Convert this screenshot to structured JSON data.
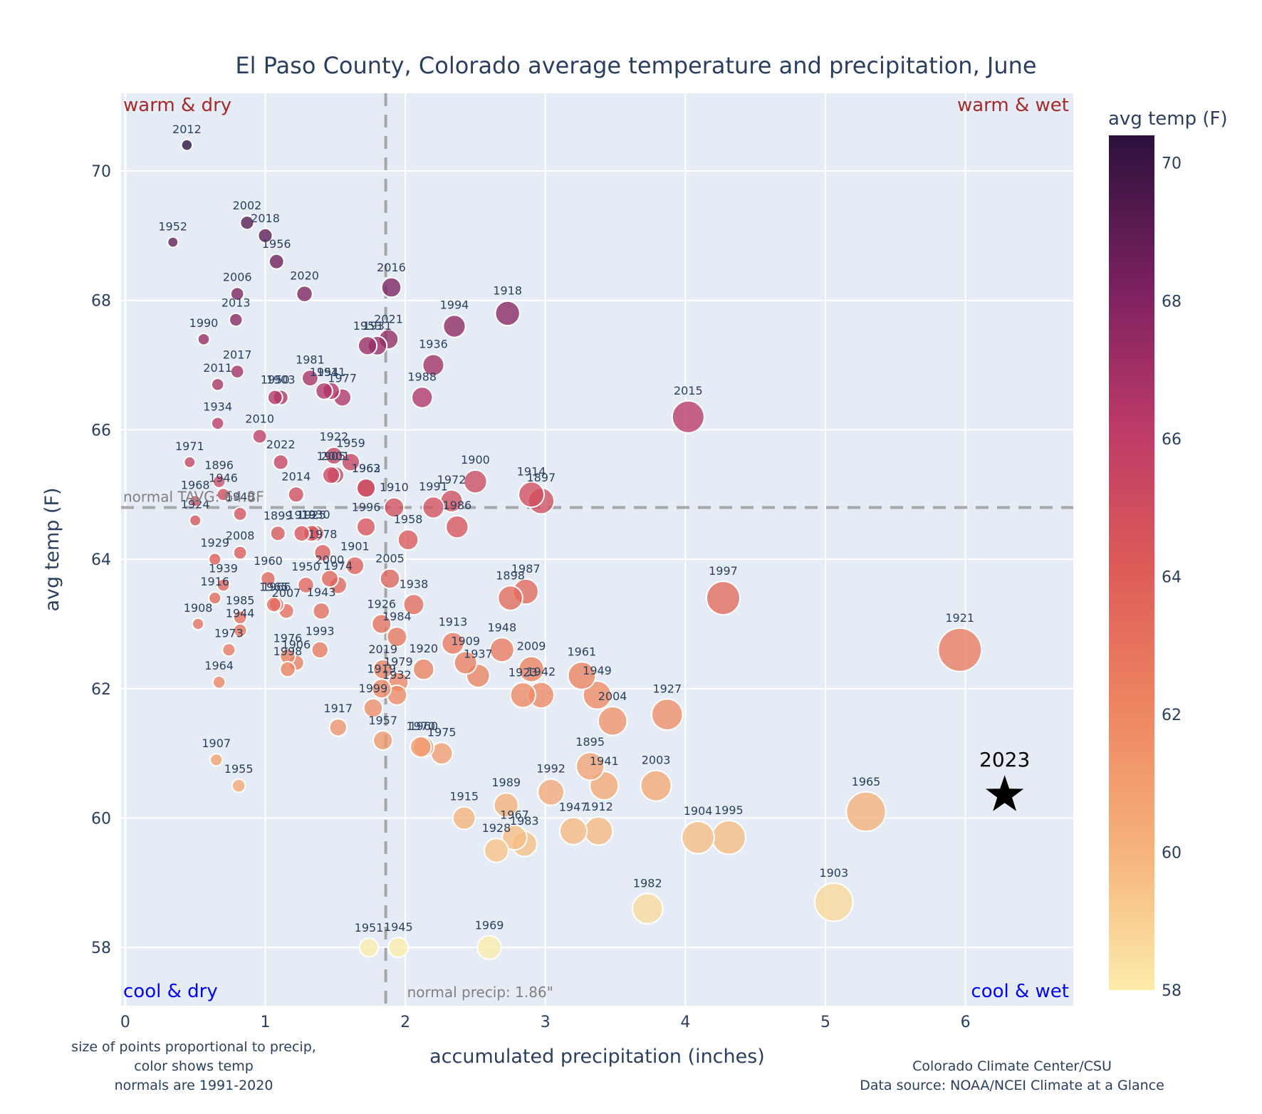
{
  "chart_data": {
    "type": "scatter",
    "title": "El Paso County, Colorado average temperature and precipitation, June",
    "xlabel": "accumulated precipitation (inches)",
    "ylabel": "avg temp (F)",
    "xlim": [
      -0.03,
      6.77
    ],
    "ylim": [
      57.1,
      71.2
    ],
    "xticks": [
      0,
      1,
      2,
      3,
      4,
      5,
      6
    ],
    "yticks": [
      58,
      60,
      62,
      64,
      66,
      68,
      70
    ],
    "grid": true,
    "colorbar": {
      "title": "avg temp (F)",
      "range": [
        58,
        70.4
      ],
      "ticks": [
        58,
        60,
        62,
        64,
        66,
        68,
        70
      ],
      "colorscale": "magma-like (light yellow to dark purple)"
    },
    "normals": {
      "precip": 1.86,
      "temp": 64.8,
      "precip_label": "normal precip: 1.86\"",
      "temp_label": "normal TAVG: 64.8F"
    },
    "quadrant_labels": {
      "top_left": "warm & dry",
      "top_right": "warm & wet",
      "bottom_left": "cool & dry",
      "bottom_right": "cool & wet"
    },
    "highlight": {
      "label": "2023",
      "x": 6.28,
      "y": 60.4,
      "marker": "star"
    },
    "notes": {
      "left": [
        "size of points proportional to precip,",
        "color shows temp",
        "normals are 1991-2020"
      ],
      "right": [
        "Colorado Climate Center/CSU",
        "Data source: NOAA/NCEI Climate at a Glance"
      ]
    },
    "points": [
      {
        "year": "2012",
        "x": 0.44,
        "y": 70.4
      },
      {
        "year": "1952",
        "x": 0.34,
        "y": 68.9
      },
      {
        "year": "2002",
        "x": 0.87,
        "y": 69.2
      },
      {
        "year": "2018",
        "x": 1.0,
        "y": 69.0
      },
      {
        "year": "1956",
        "x": 1.08,
        "y": 68.6
      },
      {
        "year": "2020",
        "x": 1.28,
        "y": 68.1
      },
      {
        "year": "2006",
        "x": 0.8,
        "y": 68.1
      },
      {
        "year": "2013",
        "x": 0.79,
        "y": 67.7
      },
      {
        "year": "1990",
        "x": 0.56,
        "y": 67.4
      },
      {
        "year": "2016",
        "x": 1.9,
        "y": 68.2
      },
      {
        "year": "1953",
        "x": 1.73,
        "y": 67.3
      },
      {
        "year": "1931",
        "x": 1.8,
        "y": 67.3
      },
      {
        "year": "2021",
        "x": 1.88,
        "y": 67.4
      },
      {
        "year": "1994",
        "x": 2.35,
        "y": 67.6
      },
      {
        "year": "1918",
        "x": 2.73,
        "y": 67.8
      },
      {
        "year": "1936",
        "x": 2.2,
        "y": 67.0
      },
      {
        "year": "1988",
        "x": 2.12,
        "y": 66.5
      },
      {
        "year": "2017",
        "x": 0.8,
        "y": 66.9
      },
      {
        "year": "2011",
        "x": 0.66,
        "y": 66.7
      },
      {
        "year": "1981",
        "x": 1.32,
        "y": 66.8
      },
      {
        "year": "1950",
        "x": 1.07,
        "y": 66.5
      },
      {
        "year": "1903",
        "x": 1.11,
        "y": 66.5
      },
      {
        "year": "1954",
        "x": 1.42,
        "y": 66.6
      },
      {
        "year": "1911",
        "x": 1.47,
        "y": 66.6
      },
      {
        "year": "1977",
        "x": 1.55,
        "y": 66.5
      },
      {
        "year": "1934",
        "x": 0.66,
        "y": 66.1
      },
      {
        "year": "2010",
        "x": 0.96,
        "y": 65.9
      },
      {
        "year": "2015",
        "x": 4.02,
        "y": 66.2
      },
      {
        "year": "1971",
        "x": 0.46,
        "y": 65.5
      },
      {
        "year": "2022",
        "x": 1.11,
        "y": 65.5
      },
      {
        "year": "1922",
        "x": 1.49,
        "y": 65.6
      },
      {
        "year": "1959",
        "x": 1.61,
        "y": 65.5
      },
      {
        "year": "1905",
        "x": 1.47,
        "y": 65.3
      },
      {
        "year": "2001",
        "x": 1.5,
        "y": 65.3
      },
      {
        "year": "1962",
        "x": 1.72,
        "y": 65.1
      },
      {
        "year": "1963",
        "x": 1.72,
        "y": 65.1
      },
      {
        "year": "1900",
        "x": 2.5,
        "y": 65.2
      },
      {
        "year": "1914",
        "x": 2.9,
        "y": 65.0
      },
      {
        "year": "1897",
        "x": 2.97,
        "y": 64.9
      },
      {
        "year": "1896",
        "x": 0.67,
        "y": 65.2
      },
      {
        "year": "1946",
        "x": 0.7,
        "y": 65.0
      },
      {
        "year": "1968",
        "x": 0.5,
        "y": 64.9
      },
      {
        "year": "1940",
        "x": 0.82,
        "y": 64.7
      },
      {
        "year": "1924",
        "x": 0.5,
        "y": 64.6
      },
      {
        "year": "2014",
        "x": 1.22,
        "y": 65.0
      },
      {
        "year": "1910",
        "x": 1.92,
        "y": 64.8
      },
      {
        "year": "1991",
        "x": 2.2,
        "y": 64.8
      },
      {
        "year": "1972",
        "x": 2.33,
        "y": 64.9
      },
      {
        "year": "1986",
        "x": 2.37,
        "y": 64.5
      },
      {
        "year": "1996",
        "x": 1.72,
        "y": 64.5
      },
      {
        "year": "1958",
        "x": 2.02,
        "y": 64.3
      },
      {
        "year": "1899",
        "x": 1.09,
        "y": 64.4
      },
      {
        "year": "1919",
        "x": 1.26,
        "y": 64.4
      },
      {
        "year": "1925",
        "x": 1.33,
        "y": 64.4
      },
      {
        "year": "1930",
        "x": 1.36,
        "y": 64.4
      },
      {
        "year": "1978",
        "x": 1.41,
        "y": 64.1
      },
      {
        "year": "2008",
        "x": 0.82,
        "y": 64.1
      },
      {
        "year": "1929",
        "x": 0.64,
        "y": 64.0
      },
      {
        "year": "1901",
        "x": 1.64,
        "y": 63.9
      },
      {
        "year": "2000",
        "x": 1.46,
        "y": 63.7
      },
      {
        "year": "1974",
        "x": 1.52,
        "y": 63.6
      },
      {
        "year": "1950b",
        "x": 1.29,
        "y": 63.6
      },
      {
        "year": "1960",
        "x": 1.02,
        "y": 63.7
      },
      {
        "year": "2005",
        "x": 1.89,
        "y": 63.7
      },
      {
        "year": "1939",
        "x": 0.7,
        "y": 63.6
      },
      {
        "year": "1916",
        "x": 0.64,
        "y": 63.4
      },
      {
        "year": "1965b",
        "x": 1.06,
        "y": 63.3
      },
      {
        "year": "1966",
        "x": 1.08,
        "y": 63.3
      },
      {
        "year": "2007",
        "x": 1.15,
        "y": 63.2
      },
      {
        "year": "1943",
        "x": 1.4,
        "y": 63.2
      },
      {
        "year": "1938",
        "x": 2.06,
        "y": 63.3
      },
      {
        "year": "1898",
        "x": 2.75,
        "y": 63.4
      },
      {
        "year": "1987",
        "x": 2.86,
        "y": 63.5
      },
      {
        "year": "1997",
        "x": 4.27,
        "y": 63.4
      },
      {
        "year": "1985",
        "x": 0.82,
        "y": 63.1
      },
      {
        "year": "1908",
        "x": 0.52,
        "y": 63.0
      },
      {
        "year": "1944",
        "x": 0.82,
        "y": 62.9
      },
      {
        "year": "1926",
        "x": 1.83,
        "y": 63.0
      },
      {
        "year": "1984",
        "x": 1.94,
        "y": 62.8
      },
      {
        "year": "1913",
        "x": 2.34,
        "y": 62.7
      },
      {
        "year": "1948",
        "x": 2.69,
        "y": 62.6
      },
      {
        "year": "1921",
        "x": 5.96,
        "y": 62.6
      },
      {
        "year": "1973",
        "x": 0.74,
        "y": 62.6
      },
      {
        "year": "1993",
        "x": 1.39,
        "y": 62.6
      },
      {
        "year": "1976",
        "x": 1.16,
        "y": 62.5
      },
      {
        "year": "1906",
        "x": 1.22,
        "y": 62.4
      },
      {
        "year": "1998",
        "x": 1.16,
        "y": 62.3
      },
      {
        "year": "1909",
        "x": 2.43,
        "y": 62.4
      },
      {
        "year": "1937",
        "x": 2.52,
        "y": 62.2
      },
      {
        "year": "1920",
        "x": 2.13,
        "y": 62.3
      },
      {
        "year": "2019",
        "x": 1.84,
        "y": 62.3
      },
      {
        "year": "1979",
        "x": 1.95,
        "y": 62.1
      },
      {
        "year": "1919b",
        "x": 1.83,
        "y": 62.0
      },
      {
        "year": "1932",
        "x": 1.94,
        "y": 61.9
      },
      {
        "year": "2009",
        "x": 2.9,
        "y": 62.3
      },
      {
        "year": "1923",
        "x": 2.84,
        "y": 61.9
      },
      {
        "year": "1942",
        "x": 2.97,
        "y": 61.9
      },
      {
        "year": "1961",
        "x": 3.26,
        "y": 62.2
      },
      {
        "year": "1949",
        "x": 3.37,
        "y": 61.9
      },
      {
        "year": "2004",
        "x": 3.48,
        "y": 61.5
      },
      {
        "year": "1927",
        "x": 3.87,
        "y": 61.6
      },
      {
        "year": "1964",
        "x": 0.67,
        "y": 62.1
      },
      {
        "year": "1999",
        "x": 1.77,
        "y": 61.7
      },
      {
        "year": "1917",
        "x": 1.52,
        "y": 61.4
      },
      {
        "year": "1957",
        "x": 1.84,
        "y": 61.2
      },
      {
        "year": "1970",
        "x": 2.11,
        "y": 61.1
      },
      {
        "year": "1960b",
        "x": 2.13,
        "y": 61.1
      },
      {
        "year": "1975",
        "x": 2.26,
        "y": 61.0
      },
      {
        "year": "1895",
        "x": 3.32,
        "y": 60.8
      },
      {
        "year": "1941",
        "x": 3.42,
        "y": 60.5
      },
      {
        "year": "2003",
        "x": 3.79,
        "y": 60.5
      },
      {
        "year": "1992",
        "x": 3.04,
        "y": 60.4
      },
      {
        "year": "1907",
        "x": 0.65,
        "y": 60.9
      },
      {
        "year": "1955",
        "x": 0.81,
        "y": 60.5
      },
      {
        "year": "1989",
        "x": 2.72,
        "y": 60.2
      },
      {
        "year": "1915",
        "x": 2.42,
        "y": 60.0
      },
      {
        "year": "1967",
        "x": 2.78,
        "y": 59.7
      },
      {
        "year": "1983",
        "x": 2.85,
        "y": 59.6
      },
      {
        "year": "1928",
        "x": 2.65,
        "y": 59.5
      },
      {
        "year": "1947",
        "x": 3.2,
        "y": 59.8
      },
      {
        "year": "1912",
        "x": 3.38,
        "y": 59.8
      },
      {
        "year": "1904",
        "x": 4.09,
        "y": 59.7
      },
      {
        "year": "1995",
        "x": 4.31,
        "y": 59.7
      },
      {
        "year": "1965",
        "x": 5.29,
        "y": 60.1
      },
      {
        "year": "1982",
        "x": 3.73,
        "y": 58.6
      },
      {
        "year": "1903b",
        "x": 5.06,
        "y": 58.7
      },
      {
        "year": "1951",
        "x": 1.74,
        "y": 58.0
      },
      {
        "year": "1945",
        "x": 1.95,
        "y": 58.0
      },
      {
        "year": "1969",
        "x": 2.6,
        "y": 58.0
      }
    ]
  }
}
